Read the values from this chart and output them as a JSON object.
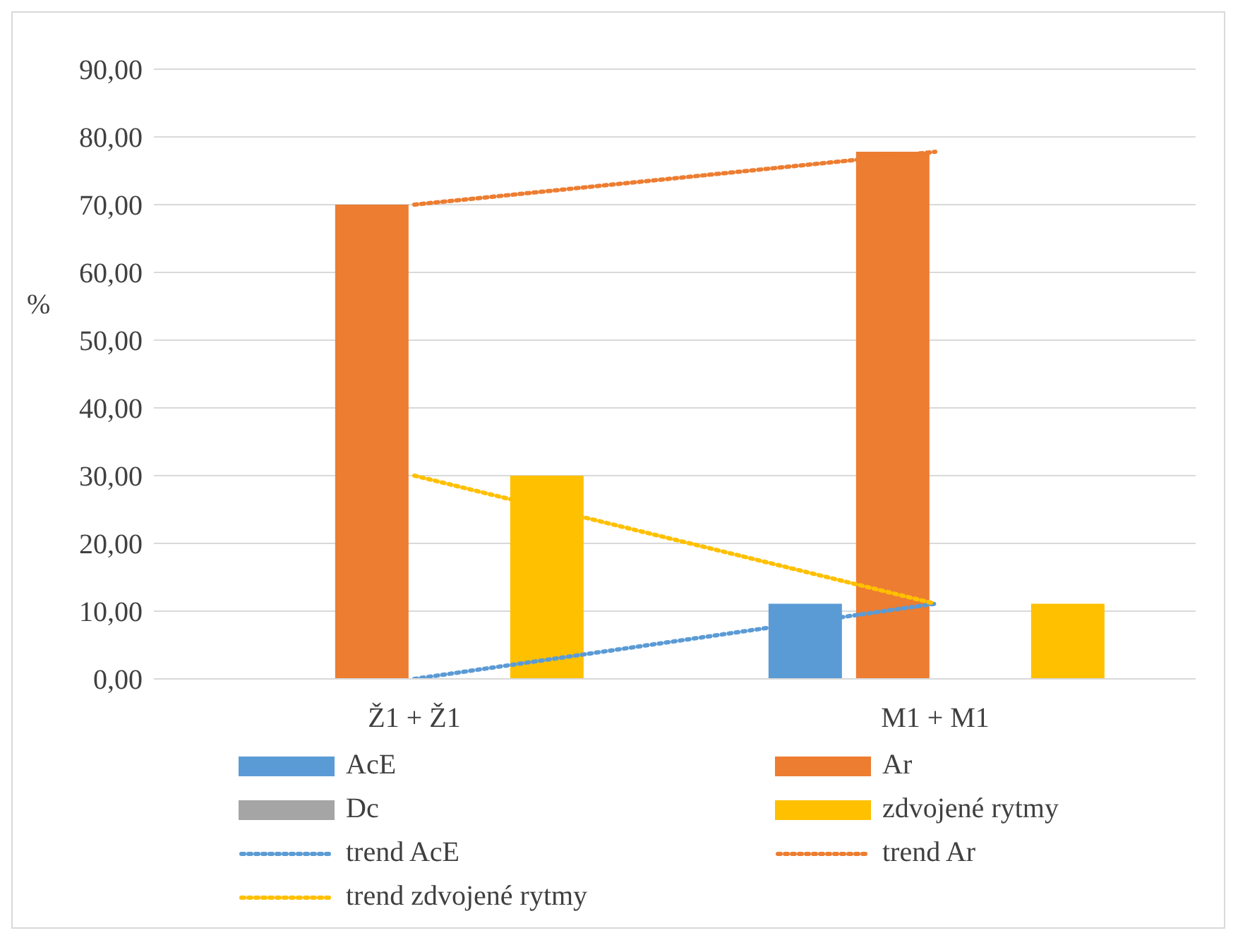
{
  "chart_data": {
    "type": "bar",
    "ylabel": "%",
    "categories": [
      "Ž1 + Ž1",
      "M1 + M1"
    ],
    "series": [
      {
        "name": "AcE",
        "color": "#5b9bd5",
        "values": [
          0,
          11.1
        ]
      },
      {
        "name": "Ar",
        "color": "#ed7d31",
        "values": [
          70,
          77.8
        ]
      },
      {
        "name": "Dc",
        "color": "#a5a5a5",
        "values": [
          0,
          0
        ]
      },
      {
        "name": "zdvojené rytmy",
        "color": "#ffc000",
        "values": [
          30,
          11.1
        ]
      },
      {
        "name": "trend AcE",
        "type": "line",
        "line_style": "dotted",
        "color": "#5b9bd5",
        "values": [
          0,
          11.1
        ]
      },
      {
        "name": "trend Ar",
        "type": "line",
        "line_style": "dotted",
        "color": "#ed7d31",
        "values": [
          70,
          77.8
        ]
      },
      {
        "name": "trend zdvojené rytmy",
        "type": "line",
        "line_style": "dotted",
        "color": "#ffc000",
        "values": [
          30,
          11.1
        ]
      }
    ],
    "ylim": [
      0,
      90
    ],
    "yticks": [
      {
        "value": 0,
        "label": "0,00"
      },
      {
        "value": 10,
        "label": "10,00"
      },
      {
        "value": 20,
        "label": "20,00"
      },
      {
        "value": 30,
        "label": "30,00"
      },
      {
        "value": 40,
        "label": "40,00"
      },
      {
        "value": 50,
        "label": "50,00"
      },
      {
        "value": 60,
        "label": "60,00"
      },
      {
        "value": 70,
        "label": "70,00"
      },
      {
        "value": 80,
        "label": "80,00"
      },
      {
        "value": 90,
        "label": "90,00"
      }
    ],
    "grid": "y",
    "legend": "bottom",
    "marker": "none"
  }
}
